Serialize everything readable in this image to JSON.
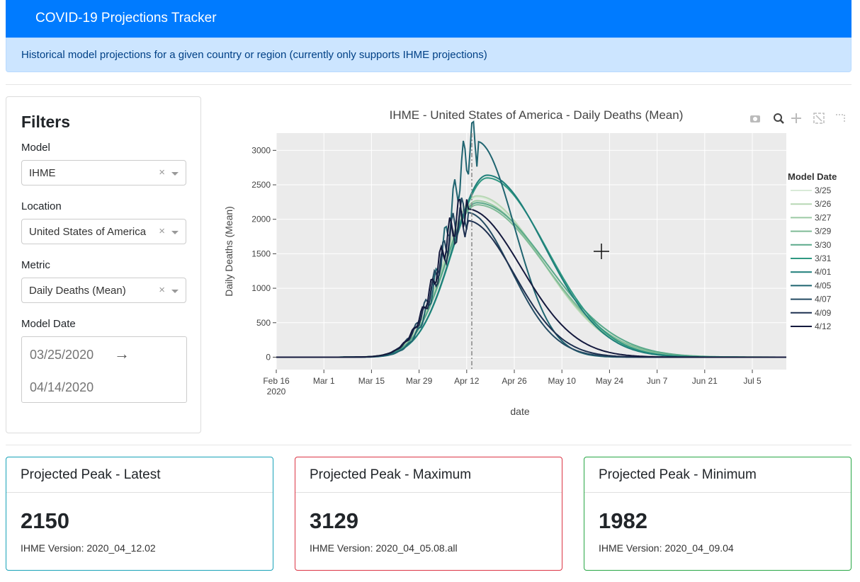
{
  "navbar": {
    "title": "COVID-19 Projections Tracker"
  },
  "alert": {
    "text": "Historical model projections for a given country or region (currently only supports IHME projections)"
  },
  "filters": {
    "title": "Filters",
    "model": {
      "label": "Model",
      "value": "IHME"
    },
    "location": {
      "label": "Location",
      "value": "United States of America"
    },
    "metric": {
      "label": "Metric",
      "value": "Daily Deaths (Mean)"
    },
    "model_date": {
      "label": "Model Date",
      "start": "03/25/2020",
      "end": "04/14/2020"
    },
    "clear_glyph": "×"
  },
  "modebar": [
    "camera-icon",
    "zoom-icon",
    "pan-icon",
    "autoscale-icon",
    "spike-icon"
  ],
  "chart_data": {
    "type": "line",
    "title": "IHME - United States of America - Daily Deaths (Mean)",
    "xlabel": "date",
    "ylabel": "Daily Deaths (Mean)",
    "x_ticks": [
      "Feb 16",
      "Mar 1",
      "Mar 15",
      "Mar 29",
      "Apr 12",
      "Apr 26",
      "May 10",
      "May 24",
      "Jun 7",
      "Jun 21",
      "Jul 5"
    ],
    "x_tick_days": [
      0,
      14,
      28,
      42,
      56,
      70,
      84,
      98,
      112,
      126,
      140
    ],
    "x_tick_sub": "2020",
    "xlim": [
      0,
      150
    ],
    "ylim": [
      -180,
      3250
    ],
    "y_ticks": [
      0,
      500,
      1000,
      1500,
      2000,
      2500,
      3000
    ],
    "vline_day": 57.5,
    "legend_title": "Model Date",
    "series": [
      {
        "name": "3/25",
        "color": "#d9ead8",
        "peak": 2320,
        "peak_day": 59,
        "sd_left": 9.5,
        "sd_right": 19
      },
      {
        "name": "3/26",
        "color": "#b7d7b4",
        "peak": 2340,
        "peak_day": 59,
        "sd_left": 9.5,
        "sd_right": 19
      },
      {
        "name": "3/27",
        "color": "#9ccaa4",
        "peak": 2270,
        "peak_day": 59,
        "sd_left": 9.3,
        "sd_right": 19.5
      },
      {
        "name": "3/29",
        "color": "#7fbb97",
        "peak": 2210,
        "peak_day": 59,
        "sd_left": 9.3,
        "sd_right": 20
      },
      {
        "name": "3/30",
        "color": "#5aa98a",
        "peak": 2240,
        "peak_day": 59,
        "sd_left": 9.3,
        "sd_right": 20.5
      },
      {
        "name": "3/31",
        "color": "#2f9882",
        "peak": 2600,
        "peak_day": 62,
        "sd_left": 10,
        "sd_right": 17.5
      },
      {
        "name": "4/01",
        "color": "#1e7f7a",
        "peak": 2640,
        "peak_day": 62,
        "sd_left": 10,
        "sd_right": 17
      },
      {
        "name": "4/05",
        "color": "#1f6470",
        "peak": 3129,
        "peak_day": 59,
        "sd_left": 8.5,
        "sd_right": 11
      },
      {
        "name": "4/07",
        "color": "#244b63",
        "peak": 2100,
        "peak_day": 56,
        "sd_left": 8.5,
        "sd_right": 13
      },
      {
        "name": "4/09",
        "color": "#1e3050",
        "peak": 1982,
        "peak_day": 56,
        "sd_left": 8.5,
        "sd_right": 14
      },
      {
        "name": "4/12",
        "color": "#14193d",
        "peak": 2150,
        "peak_day": 56,
        "sd_left": 8.5,
        "sd_right": 16
      }
    ]
  },
  "cards": [
    {
      "title": "Projected Peak - Latest",
      "value": "2150",
      "version": "IHME Version: 2020_04_12.02",
      "border": "#17a2b8"
    },
    {
      "title": "Projected Peak - Maximum",
      "value": "3129",
      "version": "IHME Version: 2020_04_05.08.all",
      "border": "#dc3545"
    },
    {
      "title": "Projected Peak - Minimum",
      "value": "1982",
      "version": "IHME Version: 2020_04_09.04",
      "border": "#28a745"
    }
  ]
}
